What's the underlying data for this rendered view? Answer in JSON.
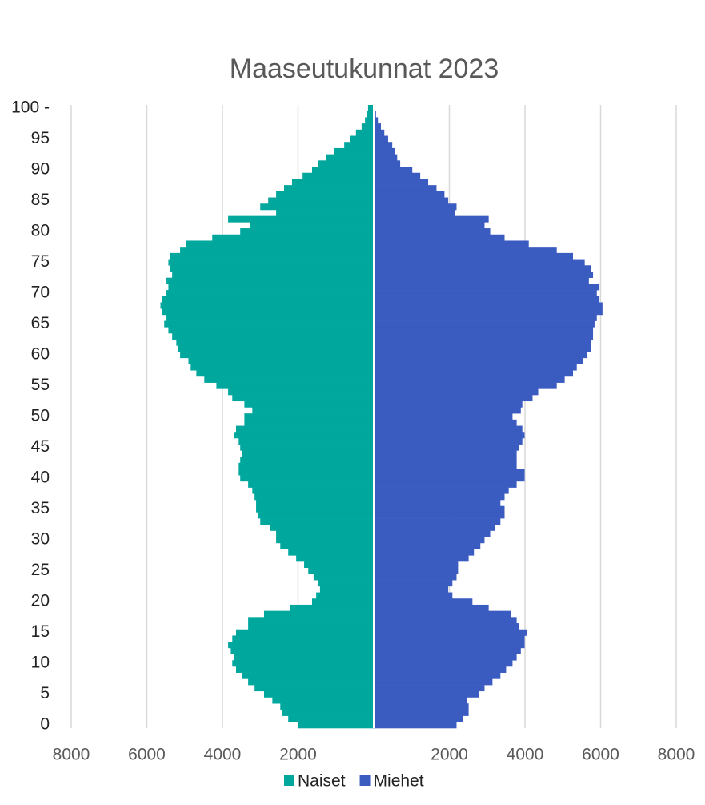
{
  "chart_data": {
    "type": "pyramid",
    "title": "Maaseutukunnat 2023",
    "categories": [
      "0",
      null,
      null,
      null,
      null,
      "5",
      null,
      null,
      null,
      null,
      "10",
      null,
      null,
      null,
      null,
      "15",
      null,
      null,
      null,
      null,
      "20",
      null,
      null,
      null,
      null,
      "25",
      null,
      null,
      null,
      null,
      "30",
      null,
      null,
      null,
      null,
      "35",
      null,
      null,
      null,
      null,
      "40",
      null,
      null,
      null,
      null,
      "45",
      null,
      null,
      null,
      null,
      "50",
      null,
      null,
      null,
      null,
      "55",
      null,
      null,
      null,
      null,
      "60",
      null,
      null,
      null,
      null,
      "65",
      null,
      null,
      null,
      null,
      "70",
      null,
      null,
      null,
      null,
      "75",
      null,
      null,
      null,
      null,
      "80",
      null,
      null,
      null,
      null,
      "85",
      null,
      null,
      null,
      null,
      "90",
      null,
      null,
      null,
      null,
      "95",
      null,
      null,
      null,
      null,
      "100 -"
    ],
    "series": [
      {
        "name": "Naiset",
        "color": "#00a79d",
        "values": [
          -2010,
          -2260,
          -2430,
          -2470,
          -2680,
          -2900,
          -3150,
          -3320,
          -3490,
          -3640,
          -3740,
          -3700,
          -3780,
          -3850,
          -3740,
          -3640,
          -3320,
          -3320,
          -2900,
          -2220,
          -1630,
          -1520,
          -1420,
          -1460,
          -1590,
          -1730,
          -1840,
          -2050,
          -2260,
          -2470,
          -2580,
          -2580,
          -2730,
          -3000,
          -3070,
          -3110,
          -3110,
          -3150,
          -3210,
          -3320,
          -3530,
          -3570,
          -3570,
          -3530,
          -3490,
          -3530,
          -3570,
          -3700,
          -3640,
          -3420,
          -3420,
          -3210,
          -3420,
          -3740,
          -3850,
          -4160,
          -4480,
          -4690,
          -4840,
          -4900,
          -5120,
          -5180,
          -5220,
          -5330,
          -5430,
          -5540,
          -5480,
          -5600,
          -5640,
          -5600,
          -5480,
          -5430,
          -5480,
          -5330,
          -5390,
          -5430,
          -5390,
          -5120,
          -4970,
          -4270,
          -3530,
          -3280,
          -3850,
          -2580,
          -3000,
          -2790,
          -2580,
          -2370,
          -2160,
          -1880,
          -1630,
          -1480,
          -1250,
          -1040,
          -780,
          -630,
          -470,
          -320,
          -230,
          -170,
          -150
        ]
      },
      {
        "name": "Miehet",
        "color": "#3a5bc0",
        "values": [
          2190,
          2360,
          2510,
          2510,
          2460,
          2780,
          2930,
          3140,
          3350,
          3500,
          3670,
          3780,
          3890,
          3990,
          3990,
          4060,
          3840,
          3780,
          3630,
          3040,
          2610,
          2080,
          1970,
          2080,
          2190,
          2230,
          2230,
          2510,
          2650,
          2820,
          2930,
          3080,
          3210,
          3350,
          3460,
          3460,
          3350,
          3460,
          3570,
          3780,
          3990,
          3990,
          3780,
          3780,
          3780,
          3840,
          3930,
          3990,
          3930,
          3780,
          3670,
          3890,
          3930,
          4200,
          4350,
          4840,
          5050,
          5270,
          5370,
          5540,
          5650,
          5750,
          5750,
          5800,
          5800,
          5840,
          5900,
          6050,
          6050,
          5970,
          5900,
          5970,
          5690,
          5800,
          5750,
          5580,
          5270,
          4840,
          4100,
          3460,
          3080,
          2930,
          3040,
          2140,
          2190,
          1970,
          1870,
          1660,
          1440,
          1230,
          1020,
          700,
          620,
          570,
          490,
          380,
          280,
          190,
          110,
          60,
          40
        ]
      }
    ],
    "xlim": [
      -8000,
      8000
    ],
    "xticks": [
      {
        "value": -8000,
        "label": "8000"
      },
      {
        "value": -6000,
        "label": "6000"
      },
      {
        "value": -4000,
        "label": "4000"
      },
      {
        "value": -2000,
        "label": "2000"
      },
      2000,
      4000,
      6000,
      8000
    ],
    "grid": true,
    "legend": "bottom"
  }
}
